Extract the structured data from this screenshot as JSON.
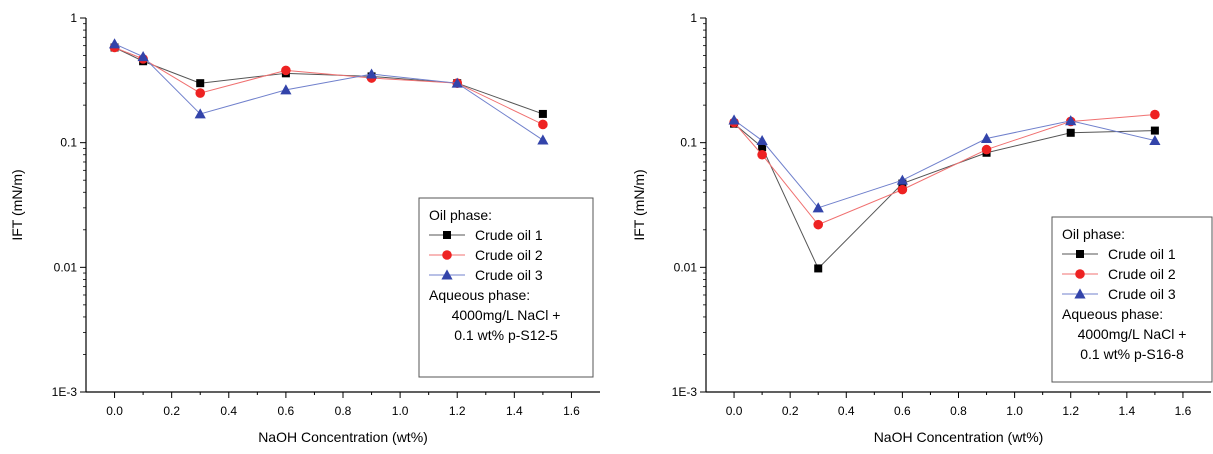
{
  "chart_data": [
    {
      "type": "line",
      "xlabel": "NaOH Concentration (wt%)",
      "ylabel": "IFT (mN/m)",
      "xlim": [
        -0.1,
        1.7
      ],
      "ylim": [
        0.001,
        1
      ],
      "yscale": "log",
      "xticks": [
        "0.0",
        "0.2",
        "0.4",
        "0.6",
        "0.8",
        "1.0",
        "1.2",
        "1.4",
        "1.6"
      ],
      "yticks": [
        "1E-3",
        "0.01",
        "0.1",
        "1"
      ],
      "grid": false,
      "legend_position": "bottom-right",
      "legend_title": "Oil phase:",
      "legend_note": [
        "Aqueous phase:",
        "4000mg/L NaCl +",
        "0.1 wt% p-S12-5"
      ],
      "series": [
        {
          "name": "Crude oil 1",
          "color": "#000000",
          "line_color": "#555555",
          "marker": "square",
          "x": [
            0.0,
            0.1,
            0.3,
            0.6,
            0.9,
            1.2,
            1.5
          ],
          "y": [
            0.58,
            0.45,
            0.3,
            0.36,
            0.34,
            0.3,
            0.17
          ]
        },
        {
          "name": "Crude oil 2",
          "color": "#ee2222",
          "line_color": "#f07070",
          "marker": "circle",
          "x": [
            0.0,
            0.1,
            0.3,
            0.6,
            0.9,
            1.2,
            1.5
          ],
          "y": [
            0.58,
            0.47,
            0.25,
            0.38,
            0.33,
            0.3,
            0.14
          ]
        },
        {
          "name": "Crude oil 3",
          "color": "#3344aa",
          "line_color": "#7080cc",
          "marker": "triangle",
          "x": [
            0.0,
            0.1,
            0.3,
            0.6,
            0.9,
            1.2,
            1.5
          ],
          "y": [
            0.62,
            0.49,
            0.17,
            0.265,
            0.355,
            0.3,
            0.105
          ]
        }
      ]
    },
    {
      "type": "line",
      "xlabel": "NaOH Concentration (wt%)",
      "ylabel": "IFT (mN/m)",
      "xlim": [
        -0.1,
        1.7
      ],
      "ylim": [
        0.001,
        1
      ],
      "yscale": "log",
      "xticks": [
        "0.0",
        "0.2",
        "0.4",
        "0.6",
        "0.8",
        "1.0",
        "1.2",
        "1.4",
        "1.6"
      ],
      "yticks": [
        "1E-3",
        "0.01",
        "0.1",
        "1"
      ],
      "grid": false,
      "legend_position": "bottom-right",
      "legend_title": "Oil phase:",
      "legend_note": [
        "Aqueous phase:",
        "4000mg/L NaCl +",
        "0.1 wt% p-S16-8"
      ],
      "series": [
        {
          "name": "Crude oil 1",
          "color": "#000000",
          "line_color": "#555555",
          "marker": "square",
          "x": [
            0.0,
            0.1,
            0.3,
            0.6,
            0.9,
            1.2,
            1.5
          ],
          "y": [
            0.142,
            0.092,
            0.0098,
            0.047,
            0.083,
            0.12,
            0.125
          ]
        },
        {
          "name": "Crude oil 2",
          "color": "#ee2222",
          "line_color": "#f07070",
          "marker": "circle",
          "x": [
            0.0,
            0.1,
            0.3,
            0.6,
            0.9,
            1.2,
            1.5
          ],
          "y": [
            0.145,
            0.08,
            0.022,
            0.042,
            0.088,
            0.148,
            0.168
          ]
        },
        {
          "name": "Crude oil 3",
          "color": "#3344aa",
          "line_color": "#7080cc",
          "marker": "triangle",
          "x": [
            0.0,
            0.1,
            0.3,
            0.6,
            0.9,
            1.2,
            1.5
          ],
          "y": [
            0.152,
            0.104,
            0.03,
            0.05,
            0.108,
            0.15,
            0.104
          ]
        }
      ]
    }
  ]
}
